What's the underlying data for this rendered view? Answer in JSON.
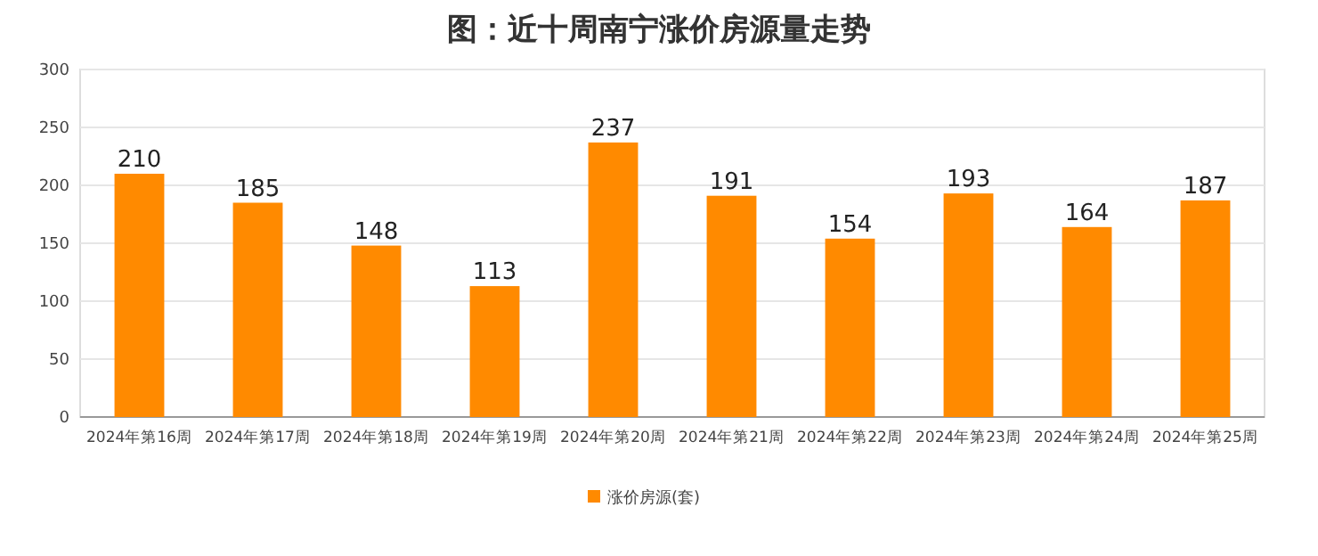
{
  "chart_data": {
    "type": "bar",
    "title": "图：近十周南宁涨价房源量走势",
    "categories": [
      "2024年第16周",
      "2024年第17周",
      "2024年第18周",
      "2024年第19周",
      "2024年第20周",
      "2024年第21周",
      "2024年第22周",
      "2024年第23周",
      "2024年第24周",
      "2024年第25周"
    ],
    "series": [
      {
        "name": "涨价房源(套)",
        "color": "#ff8a00",
        "values": [
          210,
          185,
          148,
          113,
          237,
          191,
          154,
          193,
          164,
          187
        ]
      }
    ],
    "ylim": [
      0,
      300
    ],
    "yticks": [
      0,
      50,
      100,
      150,
      200,
      250,
      300
    ],
    "grid": "y",
    "legend": "bottom",
    "data_labels": true
  }
}
